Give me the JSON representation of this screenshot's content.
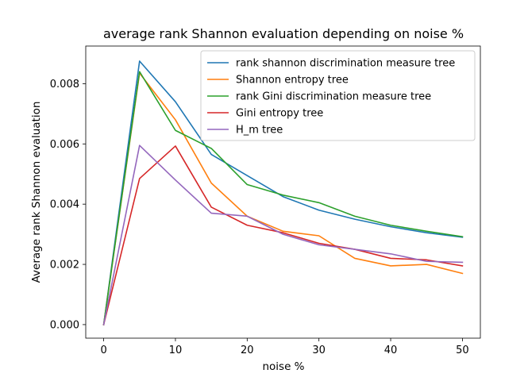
{
  "chart_data": {
    "type": "line",
    "title": "average rank Shannon evaluation depending on noise %",
    "xlabel": "noise %",
    "ylabel": "Average rank Shannon evaluation",
    "xlim": [
      -2.5,
      52.5
    ],
    "ylim": [
      -0.00045,
      0.00925
    ],
    "xticks": [
      0,
      10,
      20,
      30,
      40,
      50
    ],
    "xtick_labels": [
      "0",
      "10",
      "20",
      "30",
      "40",
      "50"
    ],
    "yticks": [
      0.0,
      0.002,
      0.004,
      0.006,
      0.008
    ],
    "ytick_labels": [
      "0.000",
      "0.002",
      "0.004",
      "0.006",
      "0.008"
    ],
    "grid": false,
    "legend_position": "upper right",
    "x": [
      0,
      5,
      10,
      15,
      20,
      25,
      30,
      35,
      40,
      45,
      50
    ],
    "series": [
      {
        "name": "rank shannon discrimination measure tree",
        "color": "#1f77b4",
        "values": [
          0.0,
          0.00875,
          0.0074,
          0.00565,
          0.00495,
          0.00425,
          0.0038,
          0.0035,
          0.00325,
          0.00305,
          0.0029
        ]
      },
      {
        "name": "Shannon entropy tree",
        "color": "#ff7f0e",
        "values": [
          0.0,
          0.00835,
          0.0068,
          0.0047,
          0.0036,
          0.0031,
          0.00295,
          0.0022,
          0.00195,
          0.002,
          0.0017
        ]
      },
      {
        "name": "rank Gini discrimination measure tree",
        "color": "#2ca02c",
        "values": [
          0.0,
          0.0084,
          0.00645,
          0.00585,
          0.00465,
          0.0043,
          0.00405,
          0.0036,
          0.0033,
          0.0031,
          0.00292
        ]
      },
      {
        "name": "Gini entropy tree",
        "color": "#d62728",
        "values": [
          0.0,
          0.00485,
          0.00593,
          0.0039,
          0.0033,
          0.00305,
          0.0027,
          0.0025,
          0.0022,
          0.00215,
          0.00195
        ]
      },
      {
        "name": "H_m tree",
        "color": "#9467bd",
        "values": [
          0.0,
          0.00595,
          0.0048,
          0.0037,
          0.0036,
          0.003,
          0.00265,
          0.0025,
          0.00235,
          0.0021,
          0.00207
        ]
      }
    ]
  }
}
